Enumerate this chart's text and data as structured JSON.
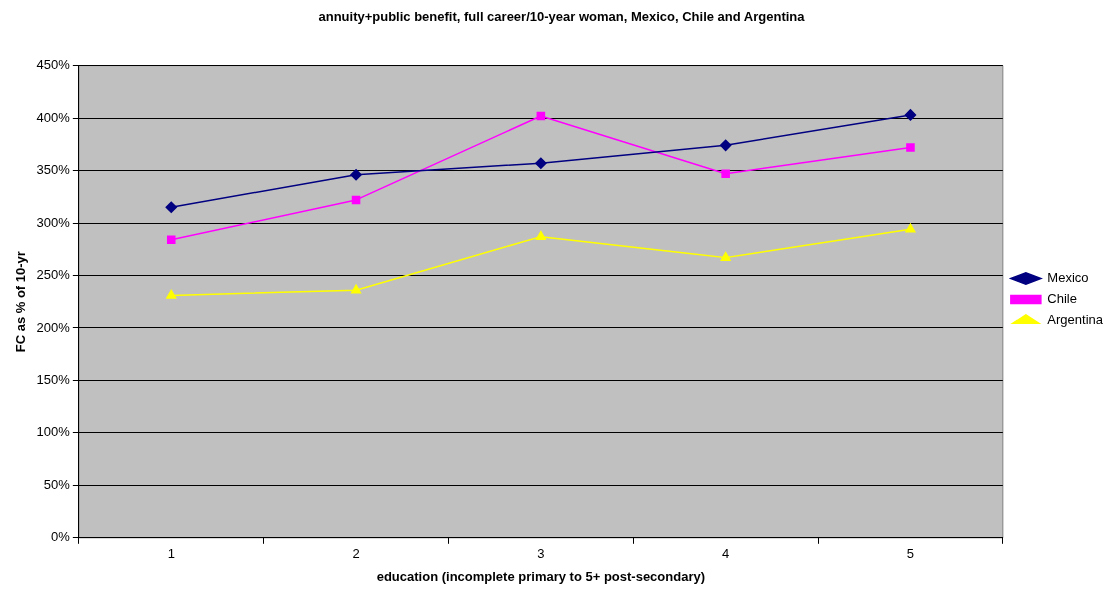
{
  "chart_data": {
    "type": "line",
    "title": "annuity+public benefit, full career/10-year woman, Mexico, Chile and Argentina",
    "xlabel": "education (incomplete primary to 5+ post-secondary)",
    "ylabel": "FC as % of 10-yr",
    "categories": [
      "1",
      "2",
      "3",
      "4",
      "5"
    ],
    "series": [
      {
        "name": "Mexico",
        "color": "#000080",
        "marker": "diamond",
        "values": [
          315,
          346,
          357,
          374,
          403
        ]
      },
      {
        "name": "Chile",
        "color": "#ff00ff",
        "marker": "square",
        "values": [
          284,
          322,
          402,
          347,
          372
        ]
      },
      {
        "name": "Argentina",
        "color": "#ffff00",
        "marker": "triangle",
        "values": [
          231,
          236,
          287,
          267,
          294
        ]
      }
    ],
    "ylim": [
      0,
      450
    ],
    "yticks": [
      {
        "value": 0,
        "label": "0%"
      },
      {
        "value": 50,
        "label": "50%"
      },
      {
        "value": 100,
        "label": "100%"
      },
      {
        "value": 150,
        "label": "150%"
      },
      {
        "value": 200,
        "label": "200%"
      },
      {
        "value": 250,
        "label": "250%"
      },
      {
        "value": 300,
        "label": "300%"
      },
      {
        "value": 350,
        "label": "350%"
      },
      {
        "value": 400,
        "label": "400%"
      },
      {
        "value": 450,
        "label": "450%"
      }
    ],
    "grid": "y",
    "legend": "right",
    "line_style": "solid"
  }
}
